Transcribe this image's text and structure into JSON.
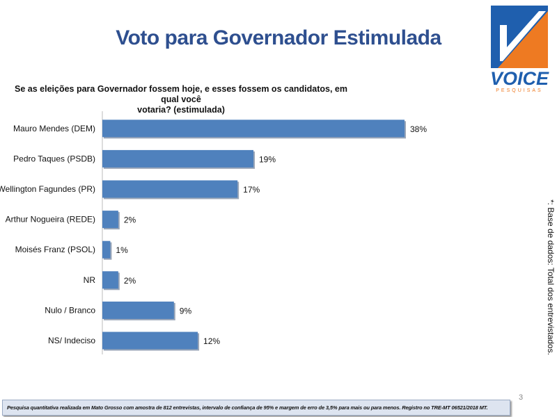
{
  "header": {
    "title": "Voto para Governador Estimulada"
  },
  "logo": {
    "name": "VOICE",
    "tagline": "PESQUISAS",
    "colors": {
      "blue": "#1f5fae",
      "orange": "#ee7a22"
    }
  },
  "side_note": "*: Base de dados: Total dos  entrevistados.",
  "page_number": "3",
  "footer": "Pesquisa quantitativa realizada em Mato Grosso com  amostra de 812 entrevistas, intervalo de confiança de 95% e margem de erro de 3,5% para mais ou para menos. Registro no TRE-MT  06521/2018 MT.",
  "chart_data": {
    "type": "bar",
    "orientation": "horizontal",
    "title": "Se as eleições para Governador fossem hoje, e esses fossem os candidatos, em qual você votaria? (estimulada)",
    "title_lines": [
      "Se as eleições para Governador fossem hoje, e esses fossem os candidatos, em qual você",
      "votaria? (estimulada)"
    ],
    "categories": [
      "Mauro Mendes (DEM)",
      "Pedro Taques (PSDB)",
      "Wellington Fagundes (PR)",
      "Arthur Nogueira (REDE)",
      "Moisés Franz (PSOL)",
      "NR",
      "Nulo / Branco",
      "NS/ Indeciso"
    ],
    "values": [
      38,
      19,
      17,
      2,
      1,
      2,
      9,
      12
    ],
    "labels": [
      "38%",
      "19%",
      "17%",
      "2%",
      "1%",
      "2%",
      "9%",
      "12%"
    ],
    "unit": "%",
    "xlim": [
      0,
      40
    ],
    "grid": false,
    "bar_color": "#4f81bd"
  }
}
